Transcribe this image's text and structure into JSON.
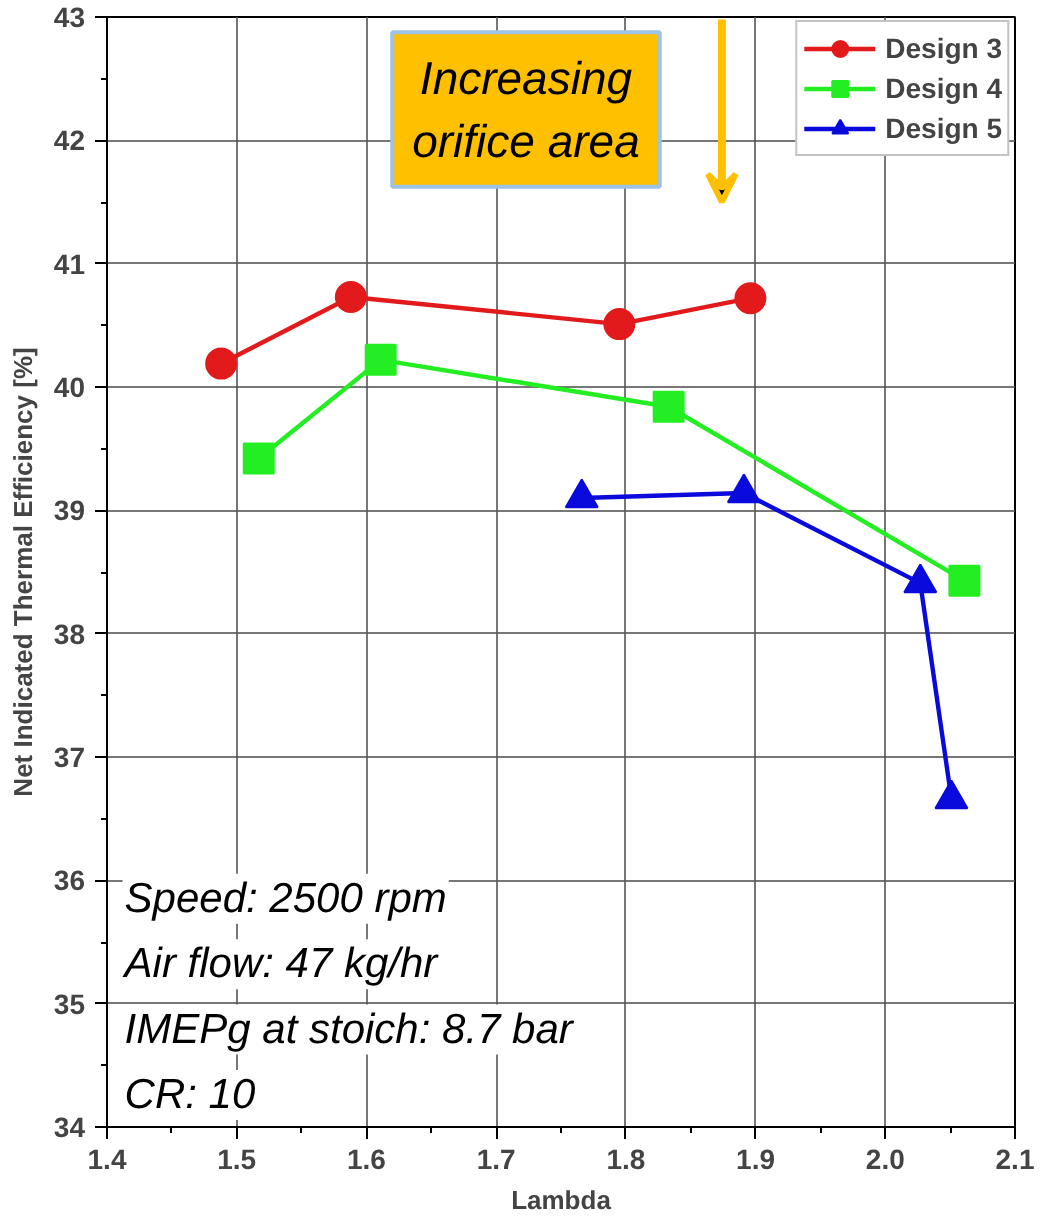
{
  "chart_data": {
    "type": "line",
    "xlabel": "Lambda",
    "ylabel": "Net Indicated Thermal Efficiency [%]",
    "xlim": [
      1.4,
      2.1
    ],
    "xticks": [
      {
        "value": 1.4,
        "label": "1.4"
      },
      {
        "value": 1.5,
        "label": "1.5"
      },
      {
        "value": 1.6,
        "label": "1.6"
      },
      {
        "value": 1.7,
        "label": "1.7"
      },
      {
        "value": 1.8,
        "label": "1.8"
      },
      {
        "value": 1.9,
        "label": "1.9"
      },
      {
        "value": 2.0,
        "label": "2.0"
      },
      {
        "value": 2.1,
        "label": "2.1"
      }
    ],
    "ylim": [
      34,
      43
    ],
    "yticks": [
      34,
      35,
      36,
      37,
      38,
      39,
      40,
      41,
      42,
      43
    ],
    "grid": true,
    "legend": "top right",
    "line_style": "solid",
    "series": [
      {
        "name": "Design 3",
        "color": "#e31a1c",
        "marker": "circle",
        "x": [
          1.488,
          1.588,
          1.795,
          1.896
        ],
        "values": [
          40.19,
          40.73,
          40.51,
          40.72
        ]
      },
      {
        "name": "Design 4",
        "color": "#22ee22",
        "marker": "square",
        "x": [
          1.517,
          1.611,
          1.833,
          2.061
        ],
        "values": [
          39.42,
          40.22,
          39.84,
          38.43
        ]
      },
      {
        "name": "Design 5",
        "color": "#0a0adc",
        "marker": "triangle",
        "x": [
          1.766,
          1.891,
          2.027,
          2.051
        ],
        "values": [
          39.1,
          39.14,
          38.41,
          36.66
        ]
      }
    ],
    "annotations": [
      "Increasing\norifice area",
      "Speed: 2500 rpm",
      "Air flow: 47 kg/hr",
      "IMEPg at stoich: 8.7 bar",
      "CR: 10"
    ]
  }
}
